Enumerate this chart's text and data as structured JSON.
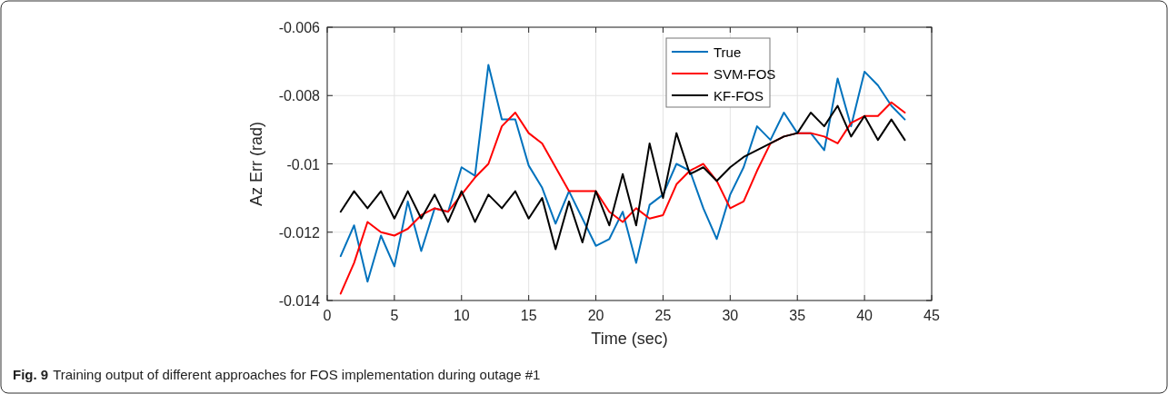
{
  "chart_data": {
    "type": "line",
    "xlabel": "Time (sec)",
    "ylabel": "Az Err (rad)",
    "xlim": [
      0,
      45
    ],
    "xticks": [
      0,
      5,
      10,
      15,
      20,
      25,
      30,
      35,
      40,
      45
    ],
    "ylim": [
      -0.014,
      -0.006
    ],
    "yticks": [
      -0.014,
      -0.012,
      -0.01,
      -0.008,
      -0.006
    ],
    "grid": true,
    "legend": "top right",
    "marker": "none",
    "line_style": "solid",
    "annotations": [
      "Fig. 9",
      "Training output of different approaches for FOS implementation during outage #1"
    ],
    "x": [
      1,
      2,
      3,
      4,
      5,
      6,
      7,
      8,
      9,
      10,
      11,
      12,
      13,
      14,
      15,
      16,
      17,
      18,
      19,
      20,
      21,
      22,
      23,
      24,
      25,
      26,
      27,
      28,
      29,
      30,
      31,
      32,
      33,
      34,
      35,
      36,
      37,
      38,
      39,
      40,
      41,
      42,
      43
    ],
    "series": [
      {
        "name": "True",
        "color": "#0072bd",
        "values": [
          -0.0127,
          -0.0118,
          -0.01345,
          -0.0121,
          -0.013,
          -0.0111,
          -0.01255,
          -0.0113,
          -0.0114,
          -0.0101,
          -0.01035,
          -0.0071,
          -0.0087,
          -0.0087,
          -0.01005,
          -0.0107,
          -0.01175,
          -0.0108,
          -0.0116,
          -0.0124,
          -0.0122,
          -0.0114,
          -0.0129,
          -0.0112,
          -0.0109,
          -0.01,
          -0.0102,
          -0.0113,
          -0.0122,
          -0.0109,
          -0.0101,
          -0.0089,
          -0.0093,
          -0.0085,
          -0.0091,
          -0.0091,
          -0.0096,
          -0.0075,
          -0.0089,
          -0.0073,
          -0.0077,
          -0.0083,
          -0.0087
        ]
      },
      {
        "name": "SVM-FOS",
        "color": "#ff0000",
        "values": [
          -0.0138,
          -0.0129,
          -0.0117,
          -0.012,
          -0.0121,
          -0.0119,
          -0.0115,
          -0.0113,
          -0.0114,
          -0.0109,
          -0.0104,
          -0.01,
          -0.0089,
          -0.0085,
          -0.0091,
          -0.0094,
          -0.0101,
          -0.0108,
          -0.0108,
          -0.0108,
          -0.0114,
          -0.0117,
          -0.0113,
          -0.0116,
          -0.0115,
          -0.0106,
          -0.0102,
          -0.01,
          -0.0105,
          -0.0113,
          -0.0111,
          -0.0102,
          -0.0094,
          -0.0092,
          -0.0091,
          -0.0091,
          -0.0092,
          -0.0094,
          -0.0088,
          -0.0086,
          -0.0086,
          -0.0082,
          -0.0085
        ]
      },
      {
        "name": "KF-FOS",
        "color": "#000000",
        "values": [
          -0.0114,
          -0.0108,
          -0.0113,
          -0.0108,
          -0.0116,
          -0.0108,
          -0.0116,
          -0.0109,
          -0.0117,
          -0.0108,
          -0.0117,
          -0.0109,
          -0.0113,
          -0.0108,
          -0.0116,
          -0.011,
          -0.0125,
          -0.0111,
          -0.0123,
          -0.0108,
          -0.0118,
          -0.0103,
          -0.0118,
          -0.0094,
          -0.011,
          -0.0091,
          -0.0103,
          -0.0101,
          -0.0105,
          -0.0101,
          -0.0098,
          -0.0096,
          -0.0094,
          -0.0092,
          -0.0091,
          -0.0085,
          -0.0089,
          -0.0083,
          -0.0092,
          -0.0086,
          -0.0093,
          -0.0087,
          -0.0093
        ]
      }
    ]
  }
}
